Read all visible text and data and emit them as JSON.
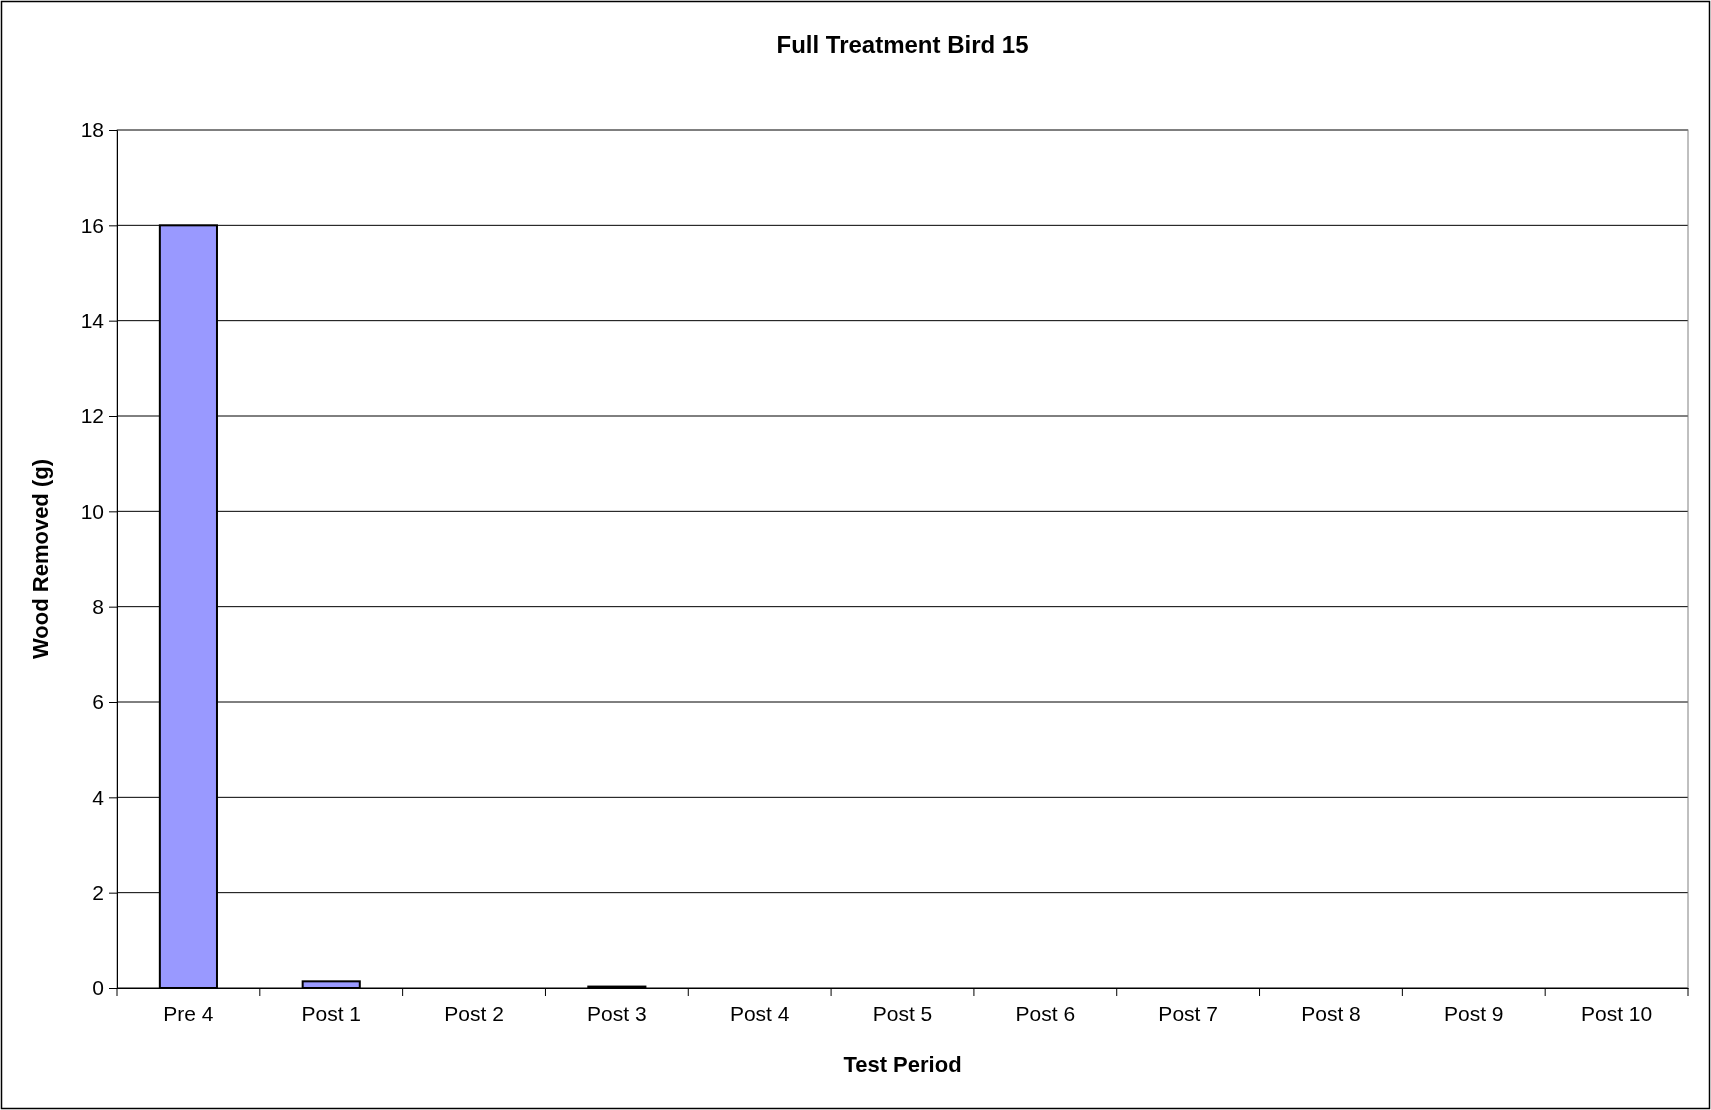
{
  "chart_data": {
    "type": "bar",
    "title": "Full Treatment Bird 15",
    "xlabel": "Test Period",
    "ylabel": "Wood Removed (g)",
    "categories": [
      "Pre 4",
      "Post 1",
      "Post 2",
      "Post 3",
      "Post 4",
      "Post 5",
      "Post 6",
      "Post 7",
      "Post 8",
      "Post 9",
      "Post 10"
    ],
    "values": [
      16,
      0.14,
      0,
      0.03,
      0,
      0,
      0,
      0,
      0,
      0,
      0
    ],
    "color": "#9999ff",
    "ylim": [
      0,
      18
    ],
    "yticks": [
      0,
      2,
      4,
      6,
      8,
      10,
      12,
      14,
      16,
      18
    ],
    "grid": "y"
  }
}
